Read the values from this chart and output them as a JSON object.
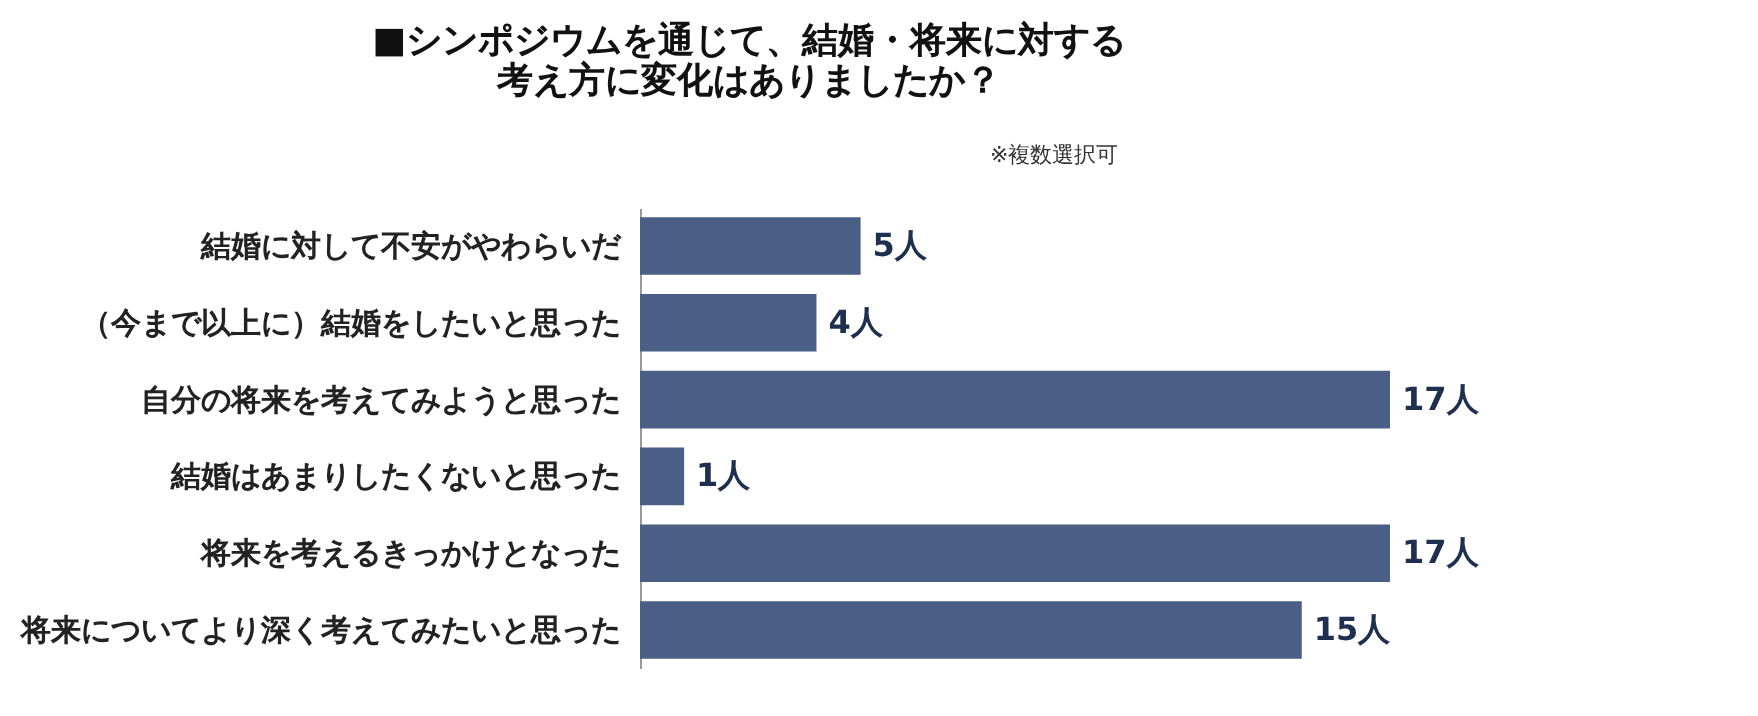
{
  "chart_data": {
    "type": "bar",
    "orientation": "horizontal",
    "title": "■シンポジウムを通じて、結婚・将来に対する考え方に変化はありましたか？",
    "annotations": [
      "※複数選択可"
    ],
    "categories": [
      "結婚に対して不安がやわらいだ",
      "（今まで以上に）結婚をしたいと思った",
      "自分の将来を考えてみようと思った",
      "結婚はあまりしたくないと思った",
      "将来を考えるきっかけとなった",
      "将来についてより深く考えてみたいと思った"
    ],
    "values": [
      5,
      4,
      17,
      1,
      17,
      15
    ],
    "value_labels": [
      "5人",
      "4人",
      "17人",
      "1人",
      "17人",
      "15人"
    ],
    "color": "#4a5f85"
  }
}
